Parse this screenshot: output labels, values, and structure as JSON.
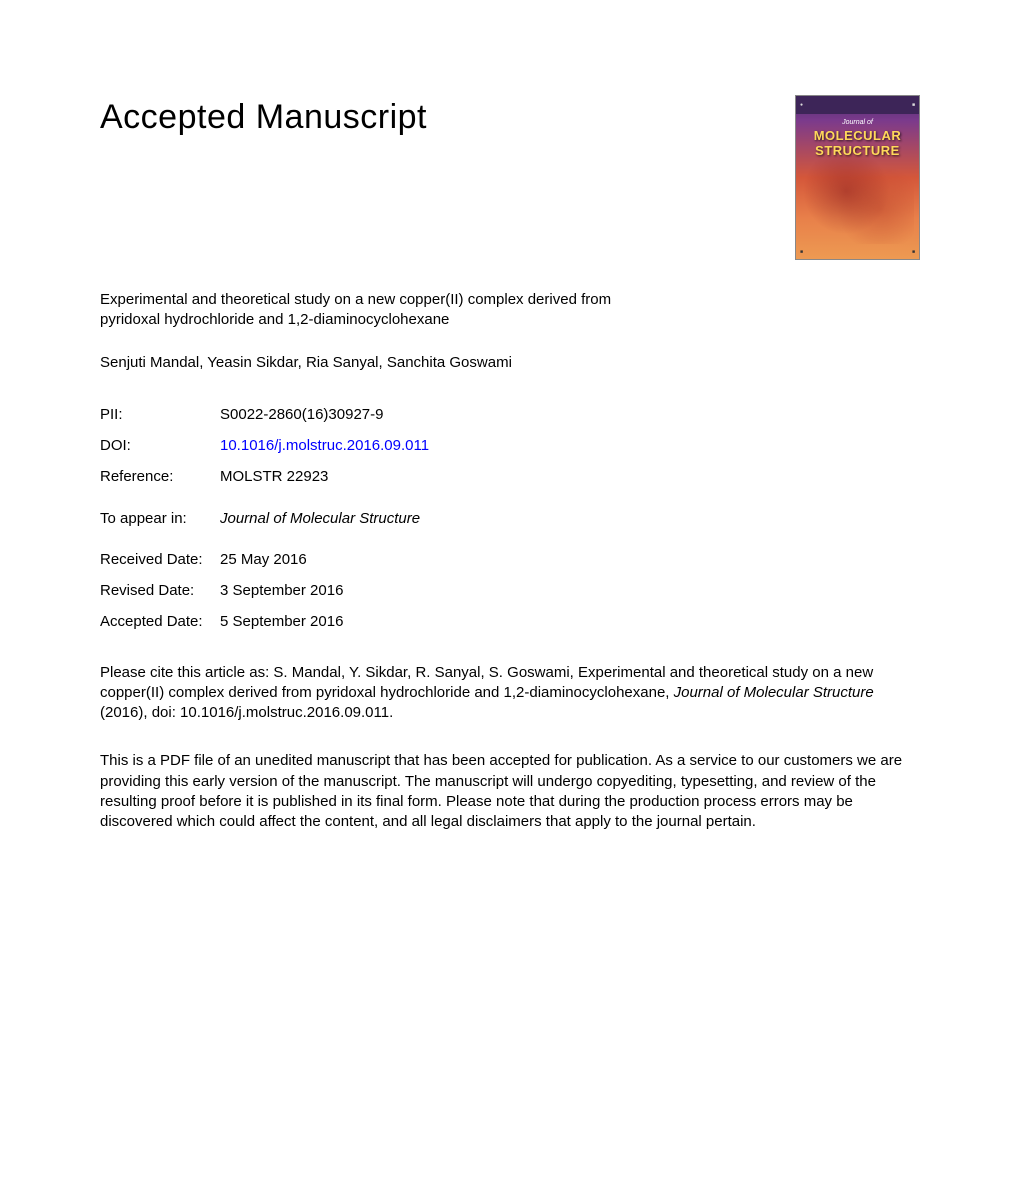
{
  "header": {
    "title": "Accepted Manuscript"
  },
  "cover": {
    "journal_label": "Journal of",
    "title_line1": "MOLECULAR",
    "title_line2": "STRUCTURE",
    "colors": {
      "top": "#4a2d6b",
      "middle": "#d4573a",
      "bottom": "#ed9a52",
      "title_color": "#ffd95a"
    }
  },
  "article": {
    "title": "Experimental and theoretical study on a new copper(II) complex derived from pyridoxal hydrochloride and 1,2-diaminocyclohexane",
    "authors": "Senjuti Mandal, Yeasin Sikdar, Ria Sanyal, Sanchita Goswami"
  },
  "meta": {
    "pii_label": "PII:",
    "pii_value": "S0022-2860(16)30927-9",
    "doi_label": "DOI:",
    "doi_value": "10.1016/j.molstruc.2016.09.011",
    "reference_label": "Reference:",
    "reference_value": "MOLSTR 22923",
    "appear_label": "To appear in:",
    "appear_value": "Journal of Molecular Structure",
    "received_label": "Received Date:",
    "received_value": "25 May 2016",
    "revised_label": "Revised Date:",
    "revised_value": "3 September 2016",
    "accepted_label": "Accepted Date:",
    "accepted_value": "5 September 2016"
  },
  "citation": {
    "prefix": "Please cite this article as: S. Mandal, Y. Sikdar, R. Sanyal, S. Goswami, Experimental and theoretical study on a new copper(II) complex derived from pyridoxal hydrochloride and 1,2-diaminocyclohexane, ",
    "journal": "Journal of Molecular Structure",
    "suffix": " (2016), doi: 10.1016/j.molstruc.2016.09.011."
  },
  "disclaimer": "This is a PDF file of an unedited manuscript that has been accepted for publication. As a service to our customers we are providing this early version of the manuscript. The manuscript will undergo copyediting, typesetting, and review of the resulting proof before it is published in its final form. Please note that during the production process errors may be discovered which could affect the content, and all legal disclaimers that apply to the journal pertain."
}
